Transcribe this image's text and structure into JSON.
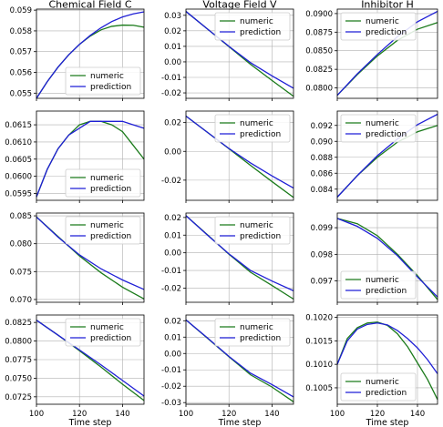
{
  "colors": {
    "numeric": "#1a7a1a",
    "prediction": "#1f1fd6",
    "grid": "#b0b0b0"
  },
  "chart_data": [
    {
      "type": "line",
      "title": "Chemical Field C",
      "xlabel": "",
      "xlim": [
        100,
        150
      ],
      "ylim": [
        0.05475,
        0.05905
      ],
      "xticks": [],
      "yticks": [
        "0.055",
        "0.056",
        "0.057",
        "0.058",
        "0.059"
      ],
      "legend": "lower-right",
      "series": [
        {
          "name": "numeric",
          "x": [
            100,
            105,
            110,
            115,
            120,
            125,
            130,
            135,
            140,
            145,
            150
          ],
          "y": [
            0.05475,
            0.05555,
            0.05625,
            0.05685,
            0.05735,
            0.05775,
            0.05805,
            0.05822,
            0.05828,
            0.05827,
            0.05818
          ]
        },
        {
          "name": "prediction",
          "x": [
            100,
            105,
            110,
            115,
            120,
            125,
            130,
            135,
            140,
            145,
            150
          ],
          "y": [
            0.05475,
            0.05555,
            0.05625,
            0.05685,
            0.05735,
            0.05778,
            0.05815,
            0.05845,
            0.05867,
            0.05882,
            0.05892
          ]
        }
      ]
    },
    {
      "type": "line",
      "title": "Voltage Field V",
      "xlabel": "",
      "xlim": [
        100,
        150
      ],
      "ylim": [
        -0.0235,
        0.034
      ],
      "xticks": [],
      "yticks": [
        "0.03",
        "0.02",
        "0.01",
        "0.00",
        "-0.01",
        "-0.02"
      ],
      "legend": "upper-right",
      "series": [
        {
          "name": "numeric",
          "x": [
            100,
            110,
            120,
            130,
            140,
            150
          ],
          "y": [
            0.0325,
            0.0212,
            0.0098,
            -0.0016,
            -0.012,
            -0.0222
          ]
        },
        {
          "name": "prediction",
          "x": [
            100,
            110,
            120,
            130,
            140,
            150
          ],
          "y": [
            0.0325,
            0.0212,
            0.01,
            -0.0005,
            -0.009,
            -0.017
          ]
        }
      ]
    },
    {
      "type": "line",
      "title": "Inhibitor H",
      "xlabel": "",
      "xlim": [
        100,
        150
      ],
      "ylim": [
        0.0786,
        0.0906
      ],
      "xticks": [],
      "yticks": [
        "0.0800",
        "0.0825",
        "0.0850",
        "0.0875",
        "0.0900"
      ],
      "legend": "upper-left",
      "series": [
        {
          "name": "numeric",
          "x": [
            100,
            110,
            120,
            130,
            140,
            150
          ],
          "y": [
            0.079,
            0.0818,
            0.0843,
            0.0864,
            0.0879,
            0.0888
          ]
        },
        {
          "name": "prediction",
          "x": [
            100,
            110,
            120,
            130,
            140,
            150
          ],
          "y": [
            0.079,
            0.0819,
            0.0845,
            0.0869,
            0.0889,
            0.0903
          ]
        }
      ]
    },
    {
      "type": "line",
      "title": "",
      "xlabel": "",
      "xlim": [
        100,
        150
      ],
      "ylim": [
        0.0593,
        0.0619
      ],
      "xticks": [],
      "yticks": [
        "0.0595",
        "0.0600",
        "0.0605",
        "0.0610",
        "0.0615"
      ],
      "legend": "lower-right",
      "series": [
        {
          "name": "numeric",
          "x": [
            100,
            105,
            110,
            115,
            120,
            125,
            130,
            135,
            140,
            145,
            150
          ],
          "y": [
            0.0594,
            0.0602,
            0.0608,
            0.0612,
            0.0615,
            0.0616,
            0.0616,
            0.0615,
            0.0613,
            0.0609,
            0.0605
          ]
        },
        {
          "name": "prediction",
          "x": [
            100,
            105,
            110,
            115,
            120,
            125,
            130,
            135,
            140,
            145,
            150
          ],
          "y": [
            0.0594,
            0.0602,
            0.0608,
            0.0612,
            0.0614,
            0.0616,
            0.0616,
            0.0616,
            0.0616,
            0.0615,
            0.0614
          ]
        }
      ]
    },
    {
      "type": "line",
      "title": "",
      "xlabel": "",
      "xlim": [
        100,
        150
      ],
      "ylim": [
        -0.034,
        0.028
      ],
      "xticks": [],
      "yticks": [
        "0.02",
        "0.00",
        "-0.02"
      ],
      "legend": "upper-right",
      "series": [
        {
          "name": "numeric",
          "x": [
            100,
            110,
            120,
            130,
            140,
            150
          ],
          "y": [
            0.0245,
            0.0132,
            0.0018,
            -0.0097,
            -0.021,
            -0.032
          ]
        },
        {
          "name": "prediction",
          "x": [
            100,
            110,
            120,
            130,
            140,
            150
          ],
          "y": [
            0.0245,
            0.0132,
            0.002,
            -0.008,
            -0.017,
            -0.0255
          ]
        }
      ]
    },
    {
      "type": "line",
      "title": "",
      "xlabel": "",
      "xlim": [
        100,
        150
      ],
      "ylim": [
        0.0826,
        0.0938
      ],
      "xticks": [],
      "yticks": [
        "0.084",
        "0.086",
        "0.088",
        "0.090",
        "0.092"
      ],
      "legend": "upper-left",
      "series": [
        {
          "name": "numeric",
          "x": [
            100,
            110,
            120,
            130,
            140,
            150
          ],
          "y": [
            0.083,
            0.0857,
            0.088,
            0.0899,
            0.0912,
            0.092
          ]
        },
        {
          "name": "prediction",
          "x": [
            100,
            110,
            120,
            130,
            140,
            150
          ],
          "y": [
            0.083,
            0.0857,
            0.0882,
            0.0903,
            0.0921,
            0.0934
          ]
        }
      ]
    },
    {
      "type": "line",
      "title": "",
      "xlabel": "",
      "xlim": [
        100,
        150
      ],
      "ylim": [
        0.0695,
        0.0855
      ],
      "xticks": [],
      "yticks": [
        "0.070",
        "0.075",
        "0.080",
        "0.085"
      ],
      "legend": "upper-right",
      "series": [
        {
          "name": "numeric",
          "x": [
            100,
            110,
            120,
            130,
            140,
            150
          ],
          "y": [
            0.0848,
            0.0813,
            0.0778,
            0.0748,
            0.0722,
            0.0701
          ]
        },
        {
          "name": "prediction",
          "x": [
            100,
            110,
            120,
            130,
            140,
            150
          ],
          "y": [
            0.0848,
            0.0812,
            0.078,
            0.0755,
            0.0735,
            0.0718
          ]
        }
      ]
    },
    {
      "type": "line",
      "title": "",
      "xlabel": "",
      "xlim": [
        100,
        150
      ],
      "ylim": [
        -0.028,
        0.0225
      ],
      "xticks": [],
      "yticks": [
        "0.02",
        "0.01",
        "0.00",
        "-0.01",
        "-0.02"
      ],
      "legend": "upper-right",
      "series": [
        {
          "name": "numeric",
          "x": [
            100,
            110,
            120,
            130,
            140,
            150
          ],
          "y": [
            0.021,
            0.0102,
            -0.0008,
            -0.011,
            -0.0185,
            -0.0262
          ]
        },
        {
          "name": "prediction",
          "x": [
            100,
            110,
            120,
            130,
            140,
            150
          ],
          "y": [
            0.021,
            0.01,
            -0.0006,
            -0.01,
            -0.016,
            -0.0215
          ]
        }
      ]
    },
    {
      "type": "line",
      "title": "",
      "xlabel": "",
      "xlim": [
        100,
        150
      ],
      "ylim": [
        0.0962,
        0.09955
      ],
      "xticks": [],
      "yticks": [
        "0.097",
        "0.098",
        "0.099"
      ],
      "legend": "lower-left",
      "series": [
        {
          "name": "numeric",
          "x": [
            100,
            110,
            120,
            130,
            140,
            150
          ],
          "y": [
            0.09935,
            0.09915,
            0.0987,
            0.098,
            0.0972,
            0.0963
          ]
        },
        {
          "name": "prediction",
          "x": [
            100,
            110,
            120,
            130,
            140,
            150
          ],
          "y": [
            0.09935,
            0.09905,
            0.0986,
            0.09795,
            0.09715,
            0.0964
          ]
        }
      ]
    },
    {
      "type": "line",
      "title": "",
      "xlabel": "Time step",
      "xlim": [
        100,
        150
      ],
      "ylim": [
        0.0715,
        0.0835
      ],
      "xticks": [
        "100",
        "120",
        "140"
      ],
      "yticks": [
        "0.0725",
        "0.0750",
        "0.0775",
        "0.0800",
        "0.0825"
      ],
      "legend": "upper-right",
      "series": [
        {
          "name": "numeric",
          "x": [
            100,
            110,
            120,
            130,
            140,
            150
          ],
          "y": [
            0.0828,
            0.0808,
            0.0787,
            0.0765,
            0.0742,
            0.072
          ]
        },
        {
          "name": "prediction",
          "x": [
            100,
            110,
            120,
            130,
            140,
            150
          ],
          "y": [
            0.0828,
            0.0808,
            0.0788,
            0.0768,
            0.0747,
            0.0726
          ]
        }
      ]
    },
    {
      "type": "line",
      "title": "",
      "xlabel": "Time step",
      "xlim": [
        100,
        150
      ],
      "ylim": [
        -0.031,
        0.0235
      ],
      "xticks": [
        "100",
        "120",
        "140"
      ],
      "yticks": [
        "0.02",
        "0.01",
        "0.00",
        "-0.01",
        "-0.02",
        "-0.03"
      ],
      "legend": "upper-right",
      "series": [
        {
          "name": "numeric",
          "x": [
            100,
            110,
            120,
            130,
            140,
            150
          ],
          "y": [
            0.0205,
            0.0093,
            -0.002,
            -0.013,
            -0.0205,
            -0.0295
          ]
        },
        {
          "name": "prediction",
          "x": [
            100,
            110,
            120,
            130,
            140,
            150
          ],
          "y": [
            0.0205,
            0.0095,
            -0.0018,
            -0.012,
            -0.019,
            -0.0265
          ]
        }
      ]
    },
    {
      "type": "line",
      "title": "",
      "xlabel": "Time step",
      "xlim": [
        100,
        150
      ],
      "ylim": [
        0.10015,
        0.10205
      ],
      "xticks": [
        "100",
        "120",
        "140"
      ],
      "yticks": [
        "0.1005",
        "0.1010",
        "0.1015",
        "0.1020"
      ],
      "legend": "lower-left",
      "series": [
        {
          "name": "numeric",
          "x": [
            100,
            105,
            110,
            115,
            120,
            125,
            130,
            135,
            140,
            145,
            150
          ],
          "y": [
            0.101,
            0.10155,
            0.10178,
            0.10188,
            0.1019,
            0.10183,
            0.10165,
            0.10138,
            0.10103,
            0.10068,
            0.10025
          ]
        },
        {
          "name": "prediction",
          "x": [
            100,
            105,
            110,
            115,
            120,
            125,
            130,
            135,
            140,
            145,
            150
          ],
          "y": [
            0.101,
            0.1015,
            0.10175,
            0.10185,
            0.10188,
            0.10184,
            0.10172,
            0.10155,
            0.10135,
            0.1011,
            0.1008
          ]
        }
      ]
    }
  ]
}
